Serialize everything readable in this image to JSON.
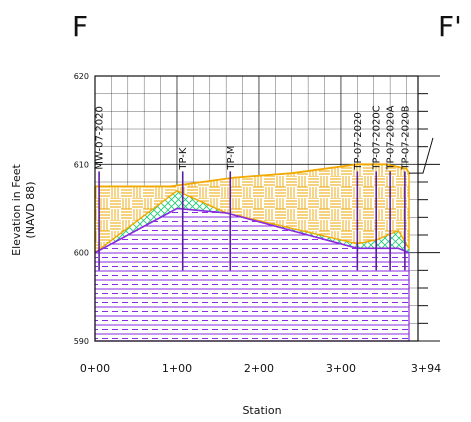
{
  "section": {
    "start_label": "F",
    "end_label": "F'"
  },
  "axes": {
    "ylabel_line1": "Elevation in Feet",
    "ylabel_line2": "(NAVD 88)",
    "xlabel": "Station",
    "y_ticks": [
      "620",
      "610",
      "600",
      "590"
    ],
    "x_ticks": [
      "0+00",
      "1+00",
      "2+00",
      "3+00",
      "3+94"
    ],
    "ylim": [
      590,
      620
    ],
    "xlim": [
      0,
      394
    ]
  },
  "borings": [
    {
      "id": "MW-07-2020",
      "station": 5
    },
    {
      "id": "TP-K",
      "station": 107
    },
    {
      "id": "TP-M",
      "station": 165
    },
    {
      "id": "TP-07-2020",
      "station": 320
    },
    {
      "id": "TP-07-2020C",
      "station": 343
    },
    {
      "id": "TP-07-2020A",
      "station": 360
    },
    {
      "id": "TP-07-2020B",
      "station": 378
    }
  ],
  "layers": {
    "fill": {
      "color": "#f2a900",
      "surface": [
        [
          0,
          607.5
        ],
        [
          92,
          607.5
        ],
        [
          170,
          608.5
        ],
        [
          240,
          609
        ],
        [
          320,
          610
        ],
        [
          355,
          610
        ],
        [
          380,
          609.5
        ],
        [
          383,
          609
        ]
      ]
    },
    "middle": {
      "color": "#22cc77",
      "top": [
        [
          0,
          600
        ],
        [
          100,
          607
        ],
        [
          160,
          604.5
        ],
        [
          320,
          601
        ],
        [
          345,
          601.5
        ],
        [
          370,
          602.5
        ],
        [
          383,
          600.5
        ]
      ],
      "bottom": [
        [
          0,
          600
        ],
        [
          100,
          605
        ],
        [
          160,
          604.5
        ],
        [
          320,
          600.5
        ],
        [
          345,
          600.5
        ],
        [
          370,
          600.5
        ],
        [
          383,
          600
        ]
      ]
    },
    "lower": {
      "color": "#8a2be2",
      "top": [
        [
          0,
          600
        ],
        [
          100,
          605
        ],
        [
          160,
          604.5
        ],
        [
          320,
          600.5
        ],
        [
          345,
          600.5
        ],
        [
          370,
          600.5
        ],
        [
          383,
          600
        ]
      ],
      "bottom_elev": 590
    }
  },
  "colors": {
    "fill": "#f2a900",
    "middle": "#22cc77",
    "lower": "#8a2be2",
    "grid": "#111111"
  }
}
